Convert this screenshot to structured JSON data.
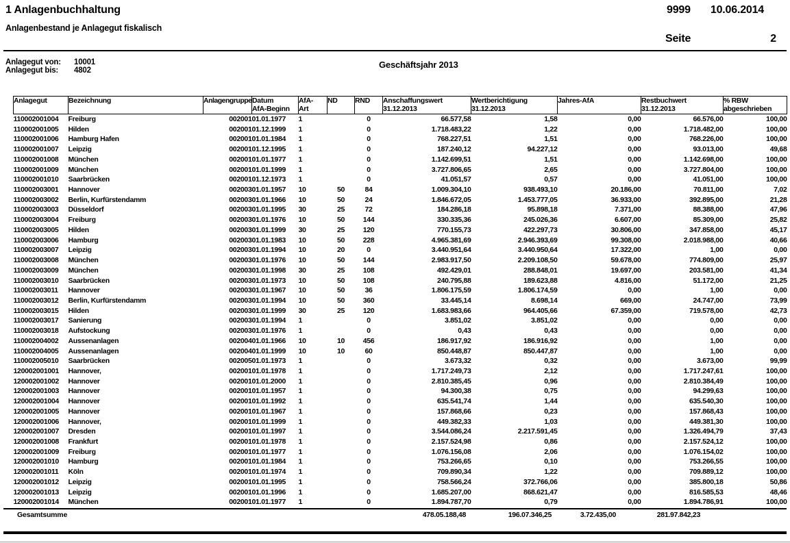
{
  "page_header": {
    "module": "1 Anlagenbuchhaltung",
    "report_title": "Anlagenbestand je Anlagegut fiskalisch",
    "client": "9999",
    "date": "10.06.2014",
    "page_label": "Seite",
    "page_number": "2"
  },
  "filters": {
    "von_label": "Anlagegut von:",
    "von_value": "10001",
    "bis_label": "Anlagegut bis:",
    "bis_value": "4802",
    "fiscal_year": "Geschäftsjahr 2013"
  },
  "table": {
    "columns": [
      {
        "l1": "Anlagegut",
        "l2": ""
      },
      {
        "l1": "Bezeichnung",
        "l2": ""
      },
      {
        "l1": "Anlagengruppe",
        "l2": ""
      },
      {
        "l1": "Datum",
        "l2": "AfA-Beginn"
      },
      {
        "l1": "AfA-",
        "l2": "Art"
      },
      {
        "l1": "ND",
        "l2": ""
      },
      {
        "l1": "RND",
        "l2": ""
      },
      {
        "l1": "Anschaffungswert",
        "l2": "31.12.2013"
      },
      {
        "l1": "Wertberichtigung",
        "l2": "31.12.2013"
      },
      {
        "l1": "Jahres-AfA",
        "l2": ""
      },
      {
        "l1": "Restbuchwert",
        "l2": "31.12.2013"
      },
      {
        "l1": "% RBW",
        "l2": "abgeschrieben"
      }
    ],
    "rows": [
      [
        "110002001004",
        "Freiburg",
        "002001",
        "01.01.1977",
        "1",
        "",
        "0",
        "66.577,58",
        "1,58",
        "0,00",
        "66.576,00",
        "100,00"
      ],
      [
        "110002001005",
        "Hilden",
        "002001",
        "01.12.1999",
        "1",
        "",
        "0",
        "1.718.483,22",
        "1,22",
        "0,00",
        "1.718.482,00",
        "100,00"
      ],
      [
        "110002001006",
        "Hamburg Hafen",
        "002001",
        "01.01.1984",
        "1",
        "",
        "0",
        "768.227,51",
        "1,51",
        "0,00",
        "768.226,00",
        "100,00"
      ],
      [
        "110002001007",
        "Leipzig",
        "002001",
        "01.12.1995",
        "1",
        "",
        "0",
        "187.240,12",
        "94.227,12",
        "0,00",
        "93.013,00",
        "49,68"
      ],
      [
        "110002001008",
        "München",
        "002001",
        "01.01.1977",
        "1",
        "",
        "0",
        "1.142.699,51",
        "1,51",
        "0,00",
        "1.142.698,00",
        "100,00"
      ],
      [
        "110002001009",
        "München",
        "002001",
        "01.01.1999",
        "1",
        "",
        "0",
        "3.727.806,65",
        "2,65",
        "0,00",
        "3.727.804,00",
        "100,00"
      ],
      [
        "110002001010",
        "Saarbrücken",
        "002001",
        "01.12.1973",
        "1",
        "",
        "0",
        "41.051,57",
        "0,57",
        "0,00",
        "41.051,00",
        "100,00"
      ],
      [
        "110002003001",
        "Hannover",
        "002003",
        "01.01.1957",
        "10",
        "50",
        "84",
        "1.009.304,10",
        "938.493,10",
        "20.186,00",
        "70.811,00",
        "7,02"
      ],
      [
        "110002003002",
        "Berlin, Kurfürstendamm",
        "002003",
        "01.01.1966",
        "10",
        "50",
        "24",
        "1.846.672,05",
        "1.453.777,05",
        "36.933,00",
        "392.895,00",
        "21,28"
      ],
      [
        "110002003003",
        "Düsseldorf",
        "002003",
        "01.01.1995",
        "30",
        "25",
        "72",
        "184.286,18",
        "95.898,18",
        "7.371,00",
        "88.388,00",
        "47,96"
      ],
      [
        "110002003004",
        "Freiburg",
        "002003",
        "01.01.1976",
        "10",
        "50",
        "144",
        "330.335,36",
        "245.026,36",
        "6.607,00",
        "85.309,00",
        "25,82"
      ],
      [
        "110002003005",
        "Hilden",
        "002003",
        "01.01.1999",
        "30",
        "25",
        "120",
        "770.155,73",
        "422.297,73",
        "30.806,00",
        "347.858,00",
        "45,17"
      ],
      [
        "110002003006",
        "Hamburg",
        "002003",
        "01.01.1983",
        "10",
        "50",
        "228",
        "4.965.381,69",
        "2.946.393,69",
        "99.308,00",
        "2.018.988,00",
        "40,66"
      ],
      [
        "110002003007",
        "Leipzig",
        "002003",
        "01.01.1994",
        "10",
        "20",
        "0",
        "3.440.951,64",
        "3.440.950,64",
        "17.322,00",
        "1,00",
        "0,00"
      ],
      [
        "110002003008",
        "München",
        "002003",
        "01.01.1976",
        "10",
        "50",
        "144",
        "2.983.917,50",
        "2.209.108,50",
        "59.678,00",
        "774.809,00",
        "25,97"
      ],
      [
        "110002003009",
        "München",
        "002003",
        "01.01.1998",
        "30",
        "25",
        "108",
        "492.429,01",
        "288.848,01",
        "19.697,00",
        "203.581,00",
        "41,34"
      ],
      [
        "110002003010",
        "Saarbrücken",
        "002003",
        "01.01.1973",
        "10",
        "50",
        "108",
        "240.795,88",
        "189.623,88",
        "4.816,00",
        "51.172,00",
        "21,25"
      ],
      [
        "110002003011",
        "Hannover",
        "002003",
        "01.01.1967",
        "10",
        "50",
        "36",
        "1.806.175,59",
        "1.806.174,59",
        "0,00",
        "1,00",
        "0,00"
      ],
      [
        "110002003012",
        "Berlin, Kurfürstendamm",
        "002003",
        "01.01.1994",
        "10",
        "50",
        "360",
        "33.445,14",
        "8.698,14",
        "669,00",
        "24.747,00",
        "73,99"
      ],
      [
        "110002003015",
        "Hilden",
        "002003",
        "01.01.1999",
        "30",
        "25",
        "120",
        "1.683.983,66",
        "964.405,66",
        "67.359,00",
        "719.578,00",
        "42,73"
      ],
      [
        "110002003017",
        "Sanierung",
        "002003",
        "01.01.1994",
        "1",
        "",
        "0",
        "3.851,02",
        "3.851,02",
        "0,00",
        "0,00",
        "0,00"
      ],
      [
        "110002003018",
        "Aufstockung",
        "002003",
        "01.01.1976",
        "1",
        "",
        "0",
        "0,43",
        "0,43",
        "0,00",
        "0,00",
        "0,00"
      ],
      [
        "110002004002",
        "Aussenanlagen",
        "002004",
        "01.01.1966",
        "10",
        "10",
        "456",
        "186.917,92",
        "186.916,92",
        "0,00",
        "1,00",
        "0,00"
      ],
      [
        "110002004005",
        "Aussenanlagen",
        "002004",
        "01.01.1999",
        "10",
        "10",
        "60",
        "850.448,87",
        "850.447,87",
        "0,00",
        "1,00",
        "0,00"
      ],
      [
        "110002005010",
        "Saarbrücken",
        "002005",
        "01.01.1973",
        "1",
        "",
        "0",
        "3.673,32",
        "0,32",
        "0,00",
        "3.673,00",
        "99,99"
      ],
      [
        "120002001001",
        "Hannover,",
        "002001",
        "01.01.1978",
        "1",
        "",
        "0",
        "1.717.249,73",
        "2,12",
        "0,00",
        "1.717.247,61",
        "100,00"
      ],
      [
        "120002001002",
        "Hannover",
        "002001",
        "01.01.2000",
        "1",
        "",
        "0",
        "2.810.385,45",
        "0,96",
        "0,00",
        "2.810.384,49",
        "100,00"
      ],
      [
        "120002001003",
        "Hannover",
        "002001",
        "01.01.1957",
        "1",
        "",
        "0",
        "94.300,38",
        "0,75",
        "0,00",
        "94.299,63",
        "100,00"
      ],
      [
        "120002001004",
        "Hannover",
        "002001",
        "01.01.1992",
        "1",
        "",
        "0",
        "635.541,74",
        "1,44",
        "0,00",
        "635.540,30",
        "100,00"
      ],
      [
        "120002001005",
        "Hannover",
        "002001",
        "01.01.1967",
        "1",
        "",
        "0",
        "157.868,66",
        "0,23",
        "0,00",
        "157.868,43",
        "100,00"
      ],
      [
        "120002001006",
        "Hannover,",
        "002001",
        "01.01.1999",
        "1",
        "",
        "0",
        "449.382,33",
        "1,03",
        "0,00",
        "449.381,30",
        "100,00"
      ],
      [
        "120002001007",
        "Dresden",
        "002001",
        "01.01.1997",
        "1",
        "",
        "0",
        "3.544.086,24",
        "2.217.591,45",
        "0,00",
        "1.326.494,79",
        "37,43"
      ],
      [
        "120002001008",
        "Frankfurt",
        "002001",
        "01.01.1978",
        "1",
        "",
        "0",
        "2.157.524,98",
        "0,86",
        "0,00",
        "2.157.524,12",
        "100,00"
      ],
      [
        "120002001009",
        "Freiburg",
        "002001",
        "01.01.1977",
        "1",
        "",
        "0",
        "1.076.156,08",
        "2,06",
        "0,00",
        "1.076.154,02",
        "100,00"
      ],
      [
        "120002001010",
        "Hamburg",
        "002001",
        "01.01.1984",
        "1",
        "",
        "0",
        "753.266,65",
        "0,10",
        "0,00",
        "753.266,55",
        "100,00"
      ],
      [
        "120002001011",
        "Köln",
        "002001",
        "01.01.1974",
        "1",
        "",
        "0",
        "709.890,34",
        "1,22",
        "0,00",
        "709.889,12",
        "100,00"
      ],
      [
        "120002001012",
        "Leipzig",
        "002001",
        "01.01.1995",
        "1",
        "",
        "0",
        "758.566,24",
        "372.766,06",
        "0,00",
        "385.800,18",
        "50,86"
      ],
      [
        "120002001013",
        "Leipzig",
        "002001",
        "01.01.1996",
        "1",
        "",
        "0",
        "1.685.207,00",
        "868.621,47",
        "0,00",
        "816.585,53",
        "48,46"
      ],
      [
        "120002001014",
        "München",
        "002001",
        "01.01.1977",
        "1",
        "",
        "0",
        "1.894.787,70",
        "0,79",
        "0,00",
        "1.894.786,91",
        "100,00"
      ]
    ],
    "totals": {
      "label": "Gesamtsumme",
      "anschaffungswert": "478.05.188,48",
      "wertberichtigung": "196.07.346,25",
      "jahres_afa": "3.72.435,00",
      "restbuchwert": "281.97.842,23"
    }
  }
}
